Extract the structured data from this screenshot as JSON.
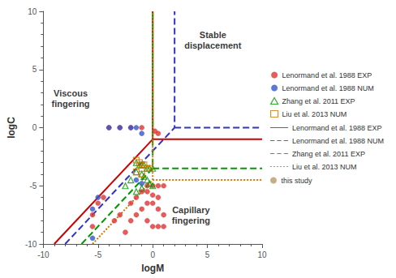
{
  "chart_data": {
    "type": "scatter",
    "xlabel": "logM",
    "ylabel": "logC",
    "xlim": [
      -10,
      10
    ],
    "ylim": [
      -10,
      10
    ],
    "xticks": [
      -10,
      -5,
      0,
      5,
      10
    ],
    "yticks": [
      -10,
      -5,
      0,
      5,
      10
    ],
    "grid": false,
    "legend": "right",
    "series": [
      {
        "name": "Lenormand et al. 1988 EXP",
        "type": "scatter",
        "color": "#dd3333",
        "marker": "circle",
        "x": [
          0.5,
          0.2,
          -1.0,
          -2.0,
          -3.0,
          -4.0,
          -0.5,
          0.0,
          0.5,
          1.0,
          -0.5,
          0.0,
          0.5,
          0.0,
          0.5,
          1.0,
          -0.5,
          -1.0,
          -1.0,
          -1.5,
          -2.0,
          -0.5,
          0.0,
          0.5,
          1.0,
          -1.5,
          -2.0,
          -2.5,
          -3.0,
          -3.5,
          -4.5,
          -5.0,
          -5.5,
          -5.5
        ],
        "y": [
          -0.5,
          -0.3,
          0.0,
          0.0,
          0.0,
          0.0,
          -5.0,
          -5.0,
          -5.0,
          -5.0,
          -5.5,
          -5.8,
          -6.0,
          -6.5,
          -7.0,
          -7.5,
          -6.5,
          -7.0,
          -5.5,
          -6.0,
          -6.5,
          -8.0,
          -8.5,
          -8.5,
          -8.5,
          -7.5,
          -8.0,
          -9.0,
          -7.5,
          -8.0,
          -6.0,
          -6.5,
          -7.5,
          -8.5
        ]
      },
      {
        "name": "Lenormand et al. 1988 NUM",
        "type": "scatter",
        "color": "#3355cc",
        "marker": "circle",
        "x": [
          -4.0,
          -3.0,
          -2.0,
          -1.5,
          -1.0,
          -1.5,
          -1.0,
          -5.0,
          -5.5,
          -5.5
        ],
        "y": [
          0.0,
          0.0,
          0.0,
          0.0,
          -0.5,
          -4.5,
          -4.8,
          -6.0,
          -7.0,
          -9.5
        ]
      },
      {
        "name": "Zhang et al. 2011 EXP",
        "type": "scatter",
        "color": "#009900",
        "marker": "triangle",
        "x": [
          -1.5,
          -1.2,
          -1.0,
          -0.8,
          -0.5,
          -0.3,
          0.0,
          -1.5,
          -1.0,
          -0.8,
          -0.5,
          -0.3,
          0.0,
          -1.0,
          -1.5,
          -2.0,
          -2.5
        ],
        "y": [
          -3.0,
          -3.2,
          -3.2,
          -3.2,
          -3.5,
          -3.5,
          -3.5,
          -3.8,
          -4.0,
          -4.2,
          -4.5,
          -4.8,
          -5.0,
          -5.2,
          -5.5,
          -4.5,
          -5.0
        ]
      },
      {
        "name": "Liu et al. 2013 NUM",
        "type": "scatter",
        "color": "#cc7700",
        "marker": "square",
        "x": [
          -1.5,
          -1.2,
          -1.0,
          -0.8,
          -0.5,
          -0.3,
          -1.5,
          -1.0
        ],
        "y": [
          -2.8,
          -3.0,
          -3.2,
          -3.2,
          -3.5,
          -3.5,
          -3.8,
          -4.0
        ]
      },
      {
        "name": "Lenormand et al. 1988 EXP",
        "type": "line",
        "color": "#cc0000",
        "line_style": "solid",
        "x": [
          -9,
          0,
          0,
          null,
          0,
          10
        ],
        "y": [
          -10,
          -1,
          10,
          null,
          -1,
          -1
        ]
      },
      {
        "name": "Lenormand et al. 1988 NUM",
        "type": "line",
        "color": "#3333cc",
        "line_style": "dashed",
        "x": [
          -8,
          2,
          2,
          null,
          2,
          10
        ],
        "y": [
          -10,
          0,
          10,
          null,
          0,
          0
        ]
      },
      {
        "name": "Zhang et al. 2011 EXP",
        "type": "line",
        "color": "#009900",
        "line_style": "dashed",
        "x": [
          -6.5,
          0,
          0,
          null,
          0,
          10
        ],
        "y": [
          -10,
          -3.5,
          10,
          null,
          -3.5,
          -3.5
        ]
      },
      {
        "name": "Liu et al. 2013 NUM",
        "type": "line",
        "color": "#cc7700",
        "line_style": "dotted",
        "x": [
          -5.5,
          0,
          0,
          null,
          0,
          10
        ],
        "y": [
          -10,
          -4.5,
          10,
          null,
          -4.5,
          -4.5
        ]
      },
      {
        "name": "this study",
        "type": "scatter",
        "color": "#bb9966",
        "marker": "circle",
        "x": [],
        "y": []
      }
    ],
    "annotations": [
      {
        "text": "Viscous\nfingering",
        "x": -7.5,
        "y": 2.5
      },
      {
        "text": "Stable\ndisplacement",
        "x": 5.5,
        "y": 7.5
      },
      {
        "text": "Capillary\nfingering",
        "x": 3.5,
        "y": -7.5
      }
    ]
  }
}
